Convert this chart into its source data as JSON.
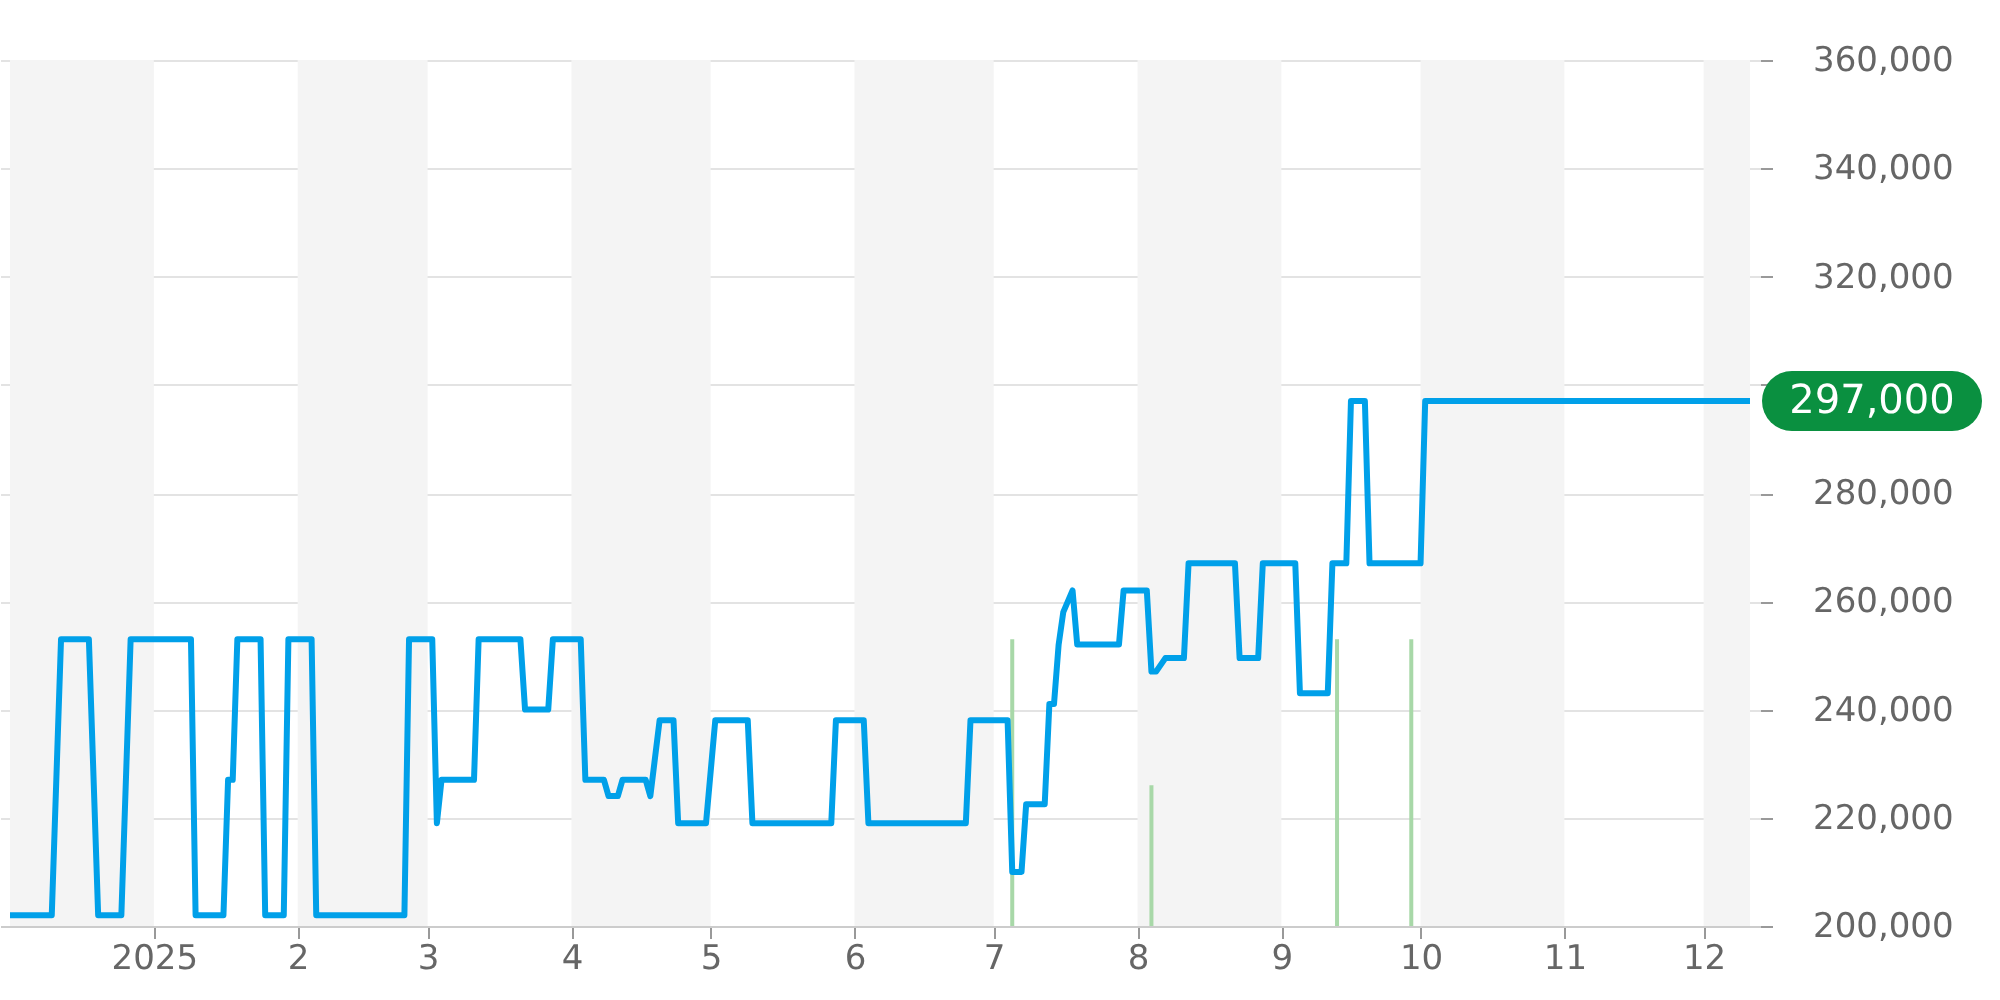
{
  "chart_data": {
    "type": "line",
    "xlim": [
      "2024-12-01",
      "2025-12-11"
    ],
    "ylim": [
      200000,
      360000
    ],
    "xticks": [
      {
        "value": "2025-01-01",
        "label": "2025"
      },
      {
        "value": "2025-02-01",
        "label": "2"
      },
      {
        "value": "2025-03-01",
        "label": "3"
      },
      {
        "value": "2025-04-01",
        "label": "4"
      },
      {
        "value": "2025-05-01",
        "label": "5"
      },
      {
        "value": "2025-06-01",
        "label": "6"
      },
      {
        "value": "2025-07-01",
        "label": "7"
      },
      {
        "value": "2025-08-01",
        "label": "8"
      },
      {
        "value": "2025-09-01",
        "label": "9"
      },
      {
        "value": "2025-10-01",
        "label": "10"
      },
      {
        "value": "2025-11-01",
        "label": "11"
      },
      {
        "value": "2025-12-01",
        "label": "12"
      }
    ],
    "yticks": [
      {
        "value": 200000,
        "label": "200,000"
      },
      {
        "value": 220000,
        "label": "220,000"
      },
      {
        "value": 240000,
        "label": "240,000"
      },
      {
        "value": 260000,
        "label": "260,000"
      },
      {
        "value": 280000,
        "label": "280,000"
      },
      {
        "value": 300000,
        "label": null
      },
      {
        "value": 320000,
        "label": "320,000"
      },
      {
        "value": 340000,
        "label": "340,000"
      },
      {
        "value": 360000,
        "label": "360,000"
      }
    ],
    "grid": "y",
    "line_style": "solid",
    "marker": "none",
    "series": [
      {
        "type": "line",
        "color": "#00a0e9",
        "x": [
          "2024-12-01",
          "2024-12-10",
          "2024-12-12",
          "2024-12-18",
          "2024-12-20",
          "2024-12-25",
          "2024-12-27",
          "2025-01-09",
          "2025-01-10",
          "2025-01-16",
          "2025-01-17",
          "2025-01-18",
          "2025-01-19",
          "2025-01-24",
          "2025-01-25",
          "2025-01-29",
          "2025-01-30",
          "2025-02-04",
          "2025-02-05",
          "2025-02-24",
          "2025-02-25",
          "2025-03-02",
          "2025-03-03",
          "2025-03-04",
          "2025-03-11",
          "2025-03-12",
          "2025-03-21",
          "2025-03-22",
          "2025-03-27",
          "2025-03-28",
          "2025-04-03",
          "2025-04-04",
          "2025-04-08",
          "2025-04-09",
          "2025-04-11",
          "2025-04-12",
          "2025-04-17",
          "2025-04-18",
          "2025-04-20",
          "2025-04-23",
          "2025-04-24",
          "2025-04-30",
          "2025-05-02",
          "2025-05-09",
          "2025-05-10",
          "2025-05-27",
          "2025-05-28",
          "2025-06-03",
          "2025-06-04",
          "2025-06-25",
          "2025-06-26",
          "2025-07-04",
          "2025-07-05",
          "2025-07-07",
          "2025-07-08",
          "2025-07-12",
          "2025-07-13",
          "2025-07-14",
          "2025-07-15",
          "2025-07-16",
          "2025-07-18",
          "2025-07-19",
          "2025-07-28",
          "2025-07-29",
          "2025-08-03",
          "2025-08-04",
          "2025-08-05",
          "2025-08-07",
          "2025-08-11",
          "2025-08-12",
          "2025-08-22",
          "2025-08-23",
          "2025-08-27",
          "2025-08-28",
          "2025-09-04",
          "2025-09-05",
          "2025-09-11",
          "2025-09-12",
          "2025-09-15",
          "2025-09-16",
          "2025-09-19",
          "2025-09-20",
          "2025-10-01",
          "2025-10-02",
          "2025-12-11"
        ],
        "values": [
          202000,
          202000,
          253000,
          253000,
          202000,
          202000,
          253000,
          253000,
          202000,
          202000,
          227000,
          227000,
          253000,
          253000,
          202000,
          202000,
          253000,
          253000,
          202000,
          202000,
          253000,
          253000,
          219000,
          227000,
          227000,
          253000,
          253000,
          240000,
          240000,
          253000,
          253000,
          227000,
          227000,
          224000,
          224000,
          227000,
          227000,
          224000,
          238000,
          238000,
          219000,
          219000,
          238000,
          238000,
          219000,
          219000,
          238000,
          238000,
          219000,
          219000,
          238000,
          238000,
          210000,
          210000,
          222500,
          222500,
          241000,
          241000,
          252000,
          258000,
          262000,
          252000,
          252000,
          262000,
          262000,
          247000,
          247000,
          249500,
          249500,
          267000,
          267000,
          249500,
          249500,
          267000,
          267000,
          243000,
          243000,
          267000,
          267000,
          297000,
          297000,
          267000,
          267000,
          297000,
          297000
        ]
      },
      {
        "type": "bar",
        "color": "#a8d8a8",
        "x": [
          "2025-07-05",
          "2025-08-04",
          "2025-09-13",
          "2025-09-29"
        ],
        "base": [
          200000,
          200000,
          200000,
          200000
        ],
        "values": [
          53000,
          26000,
          53000,
          53000
        ]
      }
    ],
    "bands": [
      {
        "axis": "x",
        "from": "2024-12-01",
        "to": "2025-01-01",
        "color": "#f4f4f4"
      },
      {
        "axis": "x",
        "from": "2025-02-01",
        "to": "2025-03-01",
        "color": "#f4f4f4"
      },
      {
        "axis": "x",
        "from": "2025-04-01",
        "to": "2025-05-01",
        "color": "#f4f4f4"
      },
      {
        "axis": "x",
        "from": "2025-06-01",
        "to": "2025-07-01",
        "color": "#f4f4f4"
      },
      {
        "axis": "x",
        "from": "2025-08-01",
        "to": "2025-09-01",
        "color": "#f4f4f4"
      },
      {
        "axis": "x",
        "from": "2025-10-01",
        "to": "2025-11-01",
        "color": "#f4f4f4"
      },
      {
        "axis": "x",
        "from": "2025-12-01",
        "to": "2025-12-11",
        "color": "#f4f4f4"
      }
    ],
    "annotations": [
      {
        "text": "297,000",
        "x": "2025-12-11",
        "y": 297000
      }
    ]
  }
}
